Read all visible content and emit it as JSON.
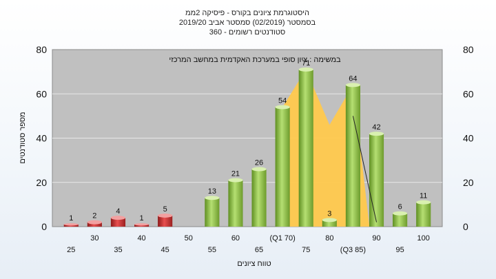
{
  "chart_data": {
    "type": "bar",
    "title_lines": [
      "היסטוגרמת ציונים בקורס - פיסיקה 2ממ",
      "בסמסטר  (02/2019)  סמסטר אביב 2019/20",
      "סטודנטים רשומים - 360"
    ],
    "ylabel": "מספר סטודנטים",
    "xlabel": "טווח ציונים",
    "annotation": "במשימה : ציון סופי במערכת האקדמית במחשב המרכזי",
    "ylim": [
      0,
      80
    ],
    "y_ticks": [
      "0",
      "20",
      "40",
      "60",
      "80"
    ],
    "categories": [
      "25",
      "30",
      "35",
      "40",
      "45",
      "50",
      "55",
      "60",
      "65",
      "(Q1 70)",
      "75",
      "80",
      "(Q3 85)",
      "90",
      "95",
      "100"
    ],
    "values": [
      1,
      2,
      4,
      1,
      5,
      0,
      13,
      21,
      26,
      54,
      71,
      3,
      64,
      42,
      6,
      11
    ],
    "value_labels": [
      "1",
      "2",
      "4",
      "1",
      "5",
      "",
      "13",
      "21",
      "26",
      "54",
      "71",
      "3",
      "64",
      "42",
      "6",
      "11"
    ],
    "failing_color": "#d63a3a",
    "passing_color": "#8cc04a",
    "area_color": "#ffc94d",
    "plot_background": "#c0c0c0",
    "grid": true
  }
}
